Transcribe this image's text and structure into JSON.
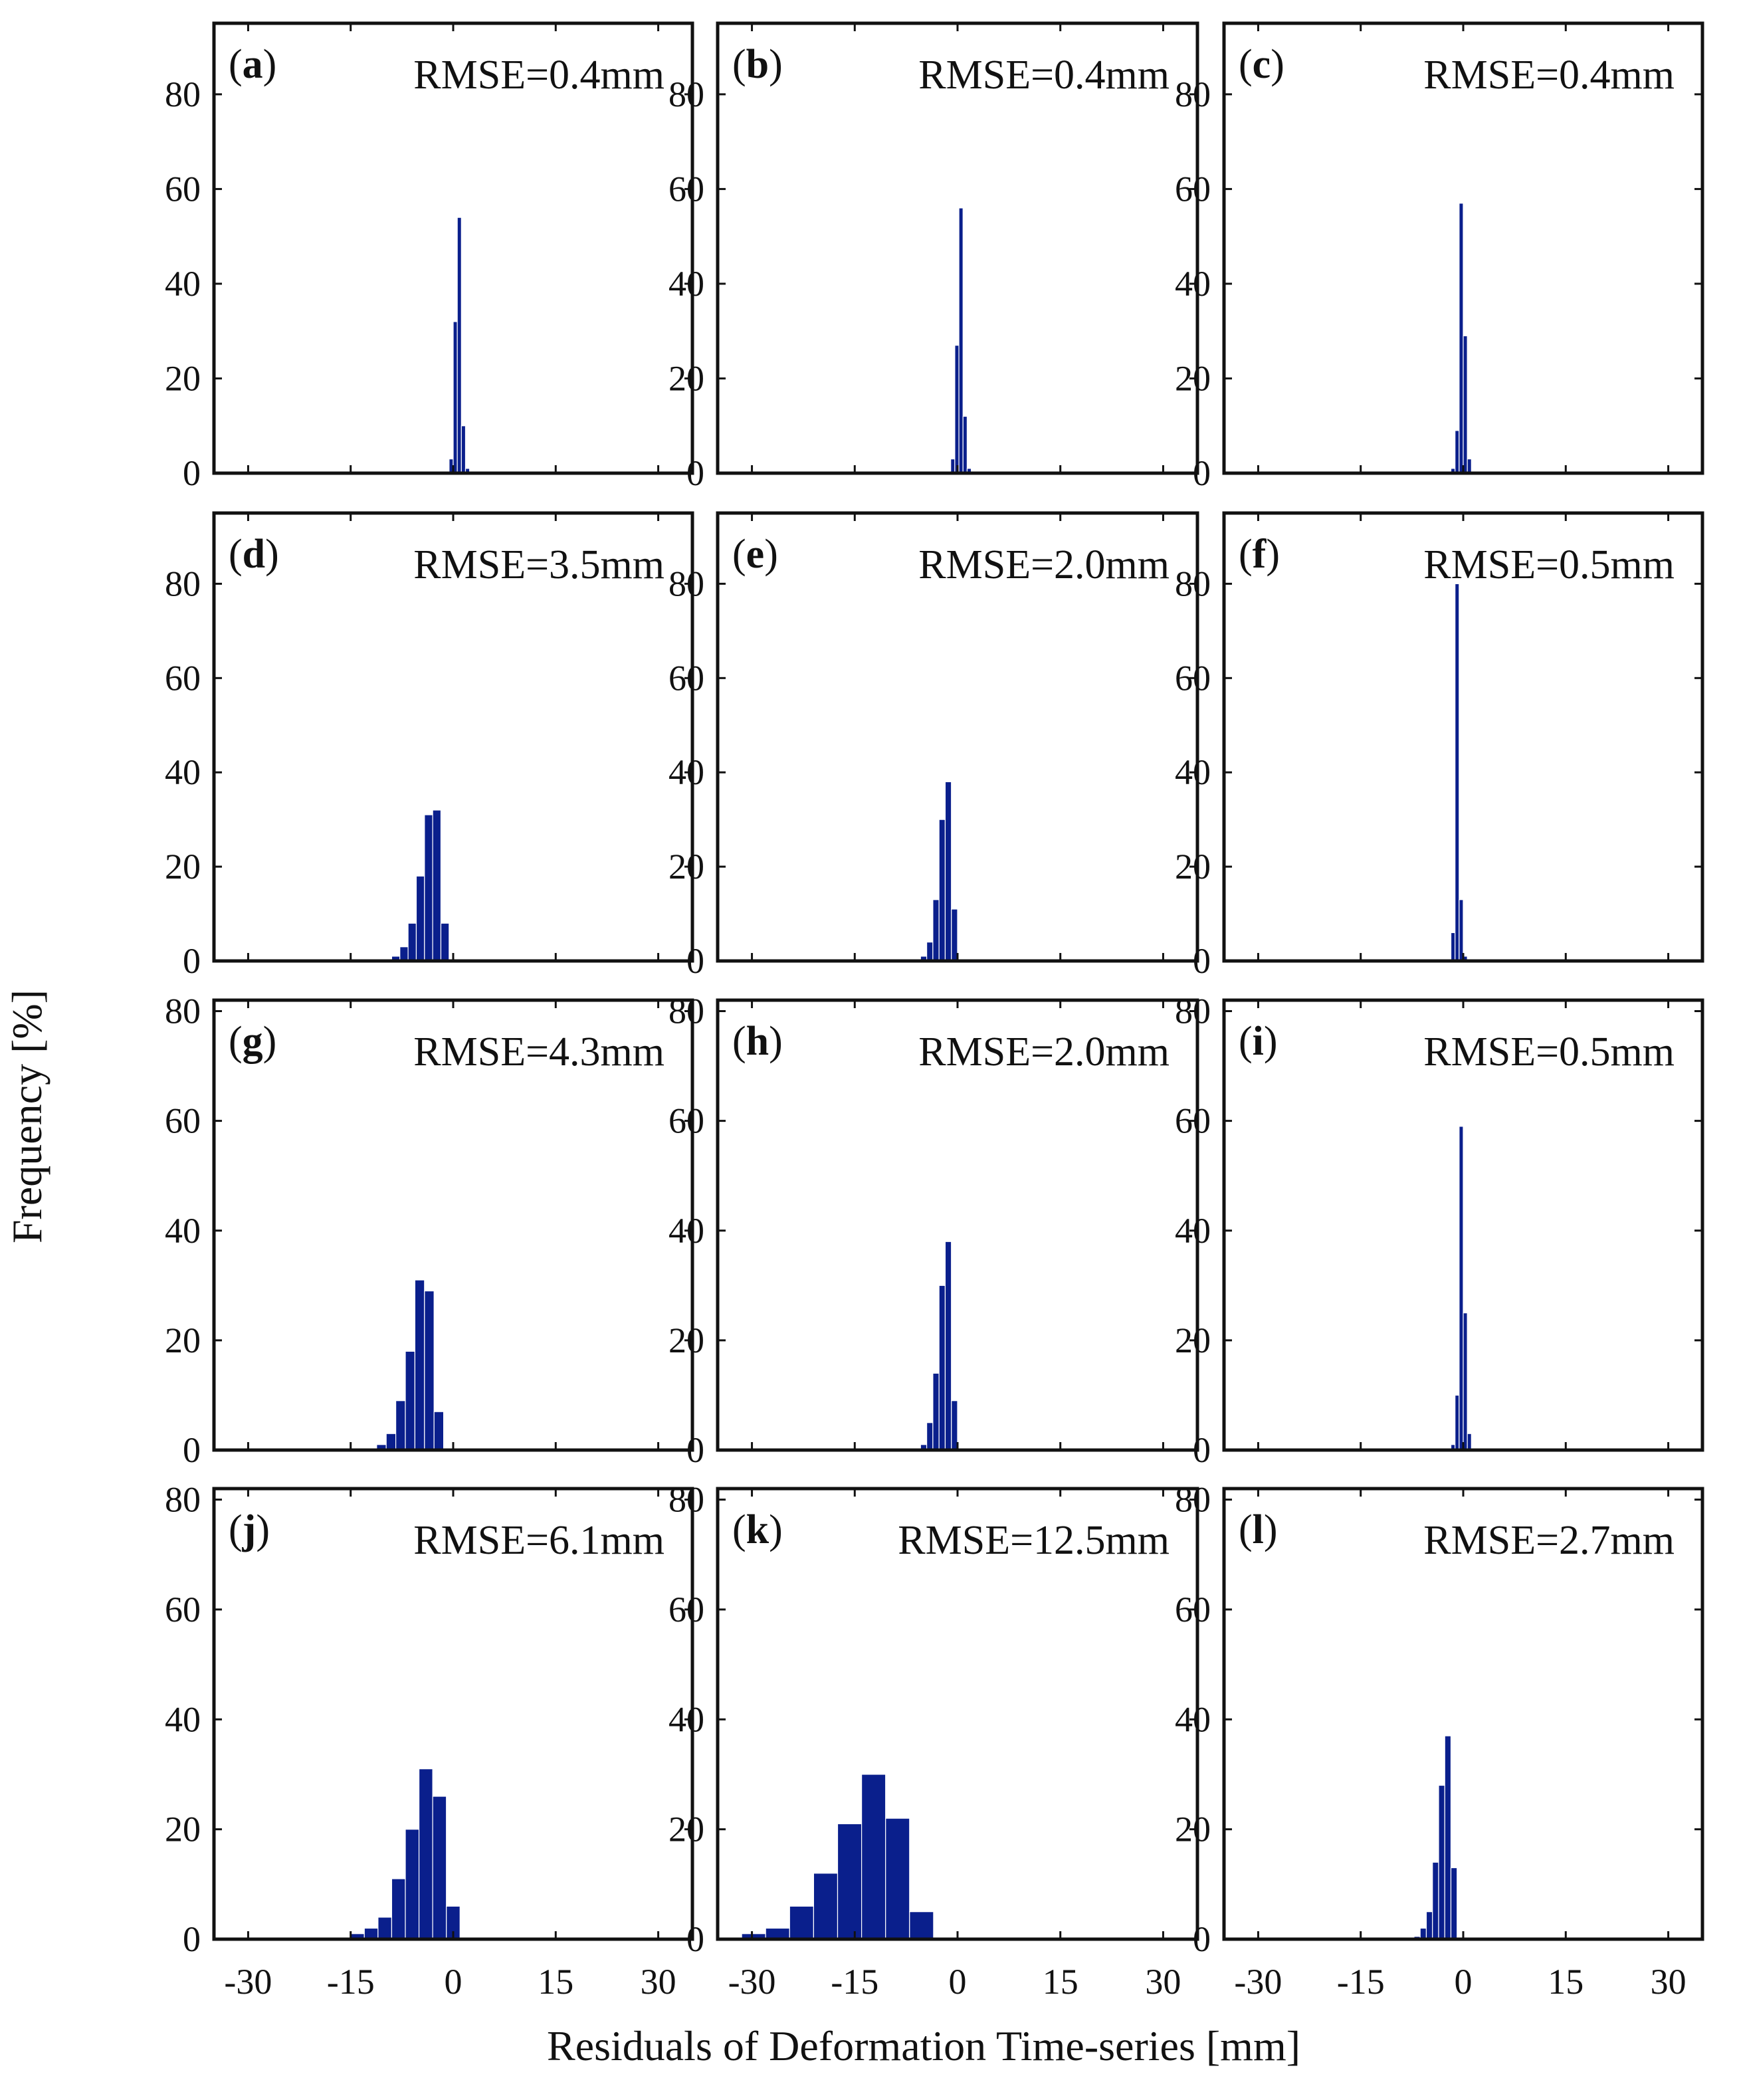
{
  "figure": {
    "ylabel": "Frequency [%]",
    "xlabel": "Residuals of Deformation Time-series [mm]"
  },
  "colors": {
    "bar": "#0a1f8c",
    "axis": "#111111"
  },
  "chart_data": [
    {
      "type": "bar",
      "panel": "a",
      "annotation": "RMSE=0.4mm",
      "xlim": [
        -35,
        35
      ],
      "ylim": [
        0,
        95
      ],
      "yticks": [
        0,
        20,
        40,
        60,
        80
      ],
      "xticks": [
        -30,
        -15,
        0,
        15,
        30
      ],
      "bins": [
        {
          "x": -0.6,
          "w": 0.6,
          "y": 3
        },
        {
          "x": 0,
          "w": 0.6,
          "y": 32
        },
        {
          "x": 0.6,
          "w": 0.6,
          "y": 54
        },
        {
          "x": 1.2,
          "w": 0.6,
          "y": 10
        },
        {
          "x": 1.8,
          "w": 0.6,
          "y": 1
        }
      ]
    },
    {
      "type": "bar",
      "panel": "b",
      "annotation": "RMSE=0.4mm",
      "xlim": [
        -35,
        35
      ],
      "ylim": [
        0,
        95
      ],
      "yticks": [
        0,
        20,
        40,
        60,
        80
      ],
      "xticks": [
        -30,
        -15,
        0,
        15,
        30
      ],
      "bins": [
        {
          "x": -1,
          "w": 0.6,
          "y": 3
        },
        {
          "x": -0.4,
          "w": 0.6,
          "y": 27
        },
        {
          "x": 0.2,
          "w": 0.6,
          "y": 56
        },
        {
          "x": 0.8,
          "w": 0.6,
          "y": 12
        },
        {
          "x": 1.4,
          "w": 0.6,
          "y": 1
        }
      ]
    },
    {
      "type": "bar",
      "panel": "c",
      "annotation": "RMSE=0.4mm",
      "xlim": [
        -35,
        35
      ],
      "ylim": [
        0,
        95
      ],
      "yticks": [
        0,
        20,
        40,
        60,
        80
      ],
      "xticks": [
        -30,
        -15,
        0,
        15,
        30
      ],
      "bins": [
        {
          "x": -1.8,
          "w": 0.6,
          "y": 1
        },
        {
          "x": -1.2,
          "w": 0.6,
          "y": 9
        },
        {
          "x": -0.6,
          "w": 0.6,
          "y": 57
        },
        {
          "x": 0,
          "w": 0.6,
          "y": 29
        },
        {
          "x": 0.6,
          "w": 0.6,
          "y": 3
        }
      ]
    },
    {
      "type": "bar",
      "panel": "d",
      "annotation": "RMSE=3.5mm",
      "xlim": [
        -35,
        35
      ],
      "ylim": [
        0,
        95
      ],
      "yticks": [
        0,
        20,
        40,
        60,
        80
      ],
      "xticks": [
        -30,
        -15,
        0,
        15,
        30
      ],
      "bins": [
        {
          "x": -9,
          "w": 1.2,
          "y": 1
        },
        {
          "x": -7.8,
          "w": 1.2,
          "y": 3
        },
        {
          "x": -6.6,
          "w": 1.2,
          "y": 8
        },
        {
          "x": -5.4,
          "w": 1.2,
          "y": 18
        },
        {
          "x": -4.2,
          "w": 1.2,
          "y": 31
        },
        {
          "x": -3,
          "w": 1.2,
          "y": 32
        },
        {
          "x": -1.8,
          "w": 1.2,
          "y": 8
        }
      ]
    },
    {
      "type": "bar",
      "panel": "e",
      "annotation": "RMSE=2.0mm",
      "xlim": [
        -35,
        35
      ],
      "ylim": [
        0,
        95
      ],
      "yticks": [
        0,
        20,
        40,
        60,
        80
      ],
      "xticks": [
        -30,
        -15,
        0,
        15,
        30
      ],
      "bins": [
        {
          "x": -5.4,
          "w": 0.9,
          "y": 1
        },
        {
          "x": -4.5,
          "w": 0.9,
          "y": 4
        },
        {
          "x": -3.6,
          "w": 0.9,
          "y": 13
        },
        {
          "x": -2.7,
          "w": 0.9,
          "y": 30
        },
        {
          "x": -1.8,
          "w": 0.9,
          "y": 38
        },
        {
          "x": -0.9,
          "w": 0.9,
          "y": 11
        }
      ]
    },
    {
      "type": "bar",
      "panel": "f",
      "annotation": "RMSE=0.5mm",
      "xlim": [
        -35,
        35
      ],
      "ylim": [
        0,
        95
      ],
      "yticks": [
        0,
        20,
        40,
        60,
        80
      ],
      "xticks": [
        -30,
        -15,
        0,
        15,
        30
      ],
      "bins": [
        {
          "x": -1.8,
          "w": 0.6,
          "y": 6
        },
        {
          "x": -1.2,
          "w": 0.6,
          "y": 80
        },
        {
          "x": -0.6,
          "w": 0.6,
          "y": 13
        },
        {
          "x": 0,
          "w": 0.6,
          "y": 1
        }
      ]
    },
    {
      "type": "bar",
      "panel": "g",
      "annotation": "RMSE=4.3mm",
      "xlim": [
        -35,
        35
      ],
      "ylim": [
        0,
        82
      ],
      "yticks": [
        0,
        20,
        40,
        60,
        80
      ],
      "xticks": [
        -30,
        -15,
        0,
        15,
        30
      ],
      "bins": [
        {
          "x": -12.6,
          "w": 1.4,
          "y": 0.3
        },
        {
          "x": -11.2,
          "w": 1.4,
          "y": 1
        },
        {
          "x": -9.8,
          "w": 1.4,
          "y": 3
        },
        {
          "x": -8.4,
          "w": 1.4,
          "y": 9
        },
        {
          "x": -7,
          "w": 1.4,
          "y": 18
        },
        {
          "x": -5.6,
          "w": 1.4,
          "y": 31
        },
        {
          "x": -4.2,
          "w": 1.4,
          "y": 29
        },
        {
          "x": -2.8,
          "w": 1.4,
          "y": 7
        }
      ]
    },
    {
      "type": "bar",
      "panel": "h",
      "annotation": "RMSE=2.0mm",
      "xlim": [
        -35,
        35
      ],
      "ylim": [
        0,
        82
      ],
      "yticks": [
        0,
        20,
        40,
        60,
        80
      ],
      "xticks": [
        -30,
        -15,
        0,
        15,
        30
      ],
      "bins": [
        {
          "x": -5.4,
          "w": 0.9,
          "y": 1
        },
        {
          "x": -4.5,
          "w": 0.9,
          "y": 5
        },
        {
          "x": -3.6,
          "w": 0.9,
          "y": 14
        },
        {
          "x": -2.7,
          "w": 0.9,
          "y": 30
        },
        {
          "x": -1.8,
          "w": 0.9,
          "y": 38
        },
        {
          "x": -0.9,
          "w": 0.9,
          "y": 9
        }
      ]
    },
    {
      "type": "bar",
      "panel": "i",
      "annotation": "RMSE=0.5mm",
      "xlim": [
        -35,
        35
      ],
      "ylim": [
        0,
        82
      ],
      "yticks": [
        0,
        20,
        40,
        60,
        80
      ],
      "xticks": [
        -30,
        -15,
        0,
        15,
        30
      ],
      "bins": [
        {
          "x": -1.8,
          "w": 0.6,
          "y": 1
        },
        {
          "x": -1.2,
          "w": 0.6,
          "y": 10
        },
        {
          "x": -0.6,
          "w": 0.6,
          "y": 59
        },
        {
          "x": 0,
          "w": 0.6,
          "y": 25
        },
        {
          "x": 0.6,
          "w": 0.6,
          "y": 3
        }
      ]
    },
    {
      "type": "bar",
      "panel": "j",
      "annotation": "RMSE=6.1mm",
      "xlim": [
        -35,
        35
      ],
      "ylim": [
        0,
        82
      ],
      "yticks": [
        0,
        20,
        40,
        60,
        80
      ],
      "xticks": [
        -30,
        -15,
        0,
        15,
        30
      ],
      "bins": [
        {
          "x": -17,
          "w": 2,
          "y": 0.3
        },
        {
          "x": -15,
          "w": 2,
          "y": 1
        },
        {
          "x": -13,
          "w": 2,
          "y": 2
        },
        {
          "x": -11,
          "w": 2,
          "y": 4
        },
        {
          "x": -9,
          "w": 2,
          "y": 11
        },
        {
          "x": -7,
          "w": 2,
          "y": 20
        },
        {
          "x": -5,
          "w": 2,
          "y": 31
        },
        {
          "x": -3,
          "w": 2,
          "y": 26
        },
        {
          "x": -1,
          "w": 2,
          "y": 6
        }
      ]
    },
    {
      "type": "bar",
      "panel": "k",
      "annotation": "RMSE=12.5mm",
      "xlim": [
        -35,
        35
      ],
      "ylim": [
        0,
        82
      ],
      "yticks": [
        0,
        20,
        40,
        60,
        80
      ],
      "xticks": [
        -30,
        -15,
        0,
        15,
        30
      ],
      "bins": [
        {
          "x": -35,
          "w": 3.5,
          "y": 0.3
        },
        {
          "x": -31.5,
          "w": 3.5,
          "y": 1
        },
        {
          "x": -28,
          "w": 3.5,
          "y": 2
        },
        {
          "x": -24.5,
          "w": 3.5,
          "y": 6
        },
        {
          "x": -21,
          "w": 3.5,
          "y": 12
        },
        {
          "x": -17.5,
          "w": 3.5,
          "y": 21
        },
        {
          "x": -14,
          "w": 3.5,
          "y": 30
        },
        {
          "x": -10.5,
          "w": 3.5,
          "y": 22
        },
        {
          "x": -7,
          "w": 3.5,
          "y": 5
        }
      ]
    },
    {
      "type": "bar",
      "panel": "l",
      "annotation": "RMSE=2.7mm",
      "xlim": [
        -35,
        35
      ],
      "ylim": [
        0,
        82
      ],
      "yticks": [
        0,
        20,
        40,
        60,
        80
      ],
      "xticks": [
        -30,
        -15,
        0,
        15,
        30
      ],
      "bins": [
        {
          "x": -7.2,
          "w": 0.9,
          "y": 0.5
        },
        {
          "x": -6.3,
          "w": 0.9,
          "y": 2
        },
        {
          "x": -5.4,
          "w": 0.9,
          "y": 5
        },
        {
          "x": -4.5,
          "w": 0.9,
          "y": 14
        },
        {
          "x": -3.6,
          "w": 0.9,
          "y": 28
        },
        {
          "x": -2.7,
          "w": 0.9,
          "y": 37
        },
        {
          "x": -1.8,
          "w": 0.9,
          "y": 13
        }
      ]
    }
  ]
}
